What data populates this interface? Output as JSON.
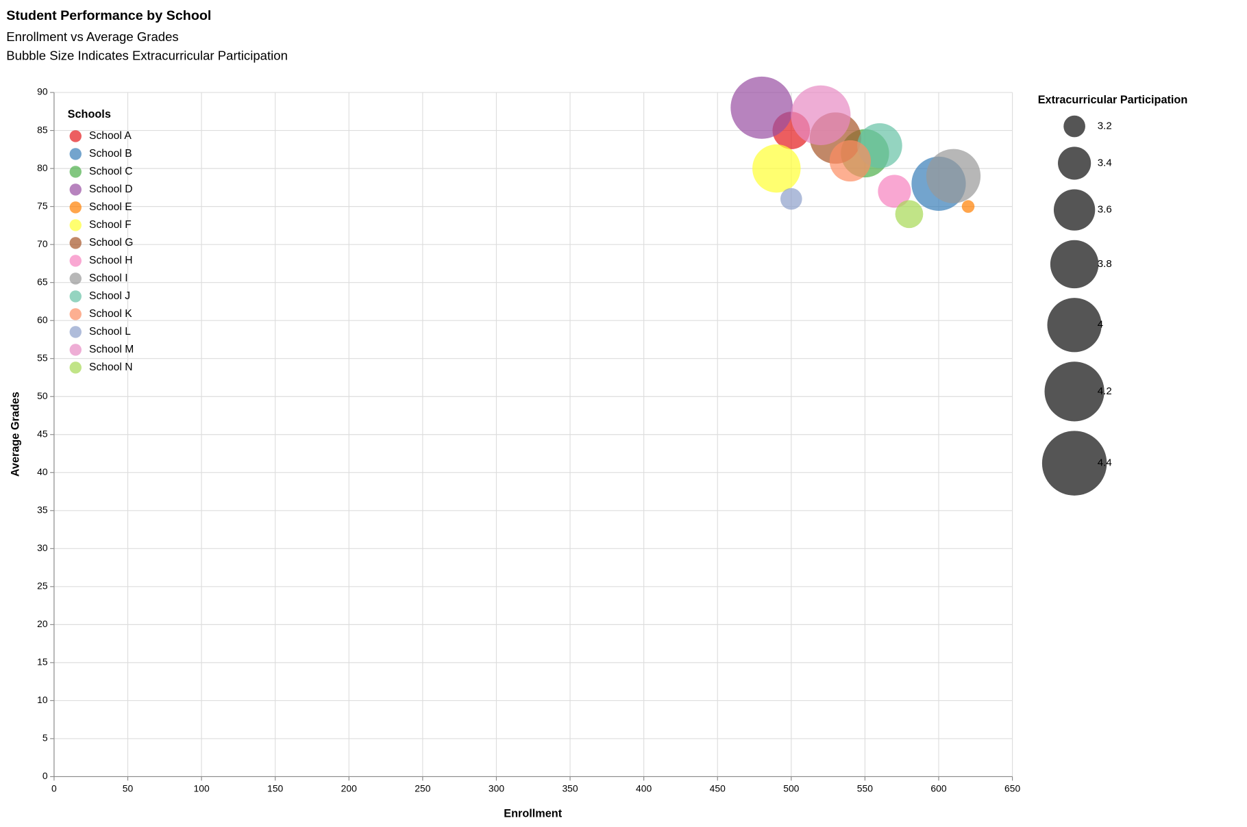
{
  "chart_data": {
    "type": "bubble",
    "title": "Student Performance by School",
    "subtitle": [
      "Enrollment vs Average Grades",
      "Bubble Size Indicates Extracurricular Participation"
    ],
    "x_label": "Enrollment",
    "y_label": "Average Grades",
    "legend_title": "Schools",
    "size_legend_title": "Extracurricular Participation",
    "legend_position": "top-left",
    "grid": true,
    "opacity": 0.7,
    "xlim": [
      0,
      650
    ],
    "xticks": [
      0,
      50,
      100,
      150,
      200,
      250,
      300,
      350,
      400,
      450,
      500,
      550,
      600,
      650
    ],
    "ylim": [
      0,
      90
    ],
    "yticks": [
      0,
      5,
      10,
      15,
      20,
      25,
      30,
      35,
      40,
      45,
      50,
      55,
      60,
      65,
      70,
      75,
      80,
      85,
      90
    ],
    "size_ticks": [
      3.2,
      3.4,
      3.6,
      3.8,
      4.0,
      4.2,
      4.4
    ],
    "size_legend_color": "#555555",
    "series": [
      {
        "name": "School A",
        "color": "#e41a1c",
        "x": [
          500
        ],
        "values": [
          85
        ],
        "sizes": [
          3.5
        ]
      },
      {
        "name": "School B",
        "color": "#377eb8",
        "x": [
          600
        ],
        "values": [
          78
        ],
        "sizes": [
          4.0
        ]
      },
      {
        "name": "School C",
        "color": "#4daf4a",
        "x": [
          550
        ],
        "values": [
          82
        ],
        "sizes": [
          3.8
        ]
      },
      {
        "name": "School D",
        "color": "#984ea3",
        "x": [
          480
        ],
        "values": [
          88
        ],
        "sizes": [
          4.3
        ]
      },
      {
        "name": "School E",
        "color": "#ff7f00",
        "x": [
          620
        ],
        "values": [
          75
        ],
        "sizes": [
          3.1
        ]
      },
      {
        "name": "School F",
        "color": "#ffff33",
        "x": [
          490
        ],
        "values": [
          80
        ],
        "sizes": [
          3.8
        ]
      },
      {
        "name": "School G",
        "color": "#a65628",
        "x": [
          530
        ],
        "values": [
          84
        ],
        "sizes": [
          3.9
        ]
      },
      {
        "name": "School H",
        "color": "#f781bf",
        "x": [
          570
        ],
        "values": [
          77
        ],
        "sizes": [
          3.4
        ]
      },
      {
        "name": "School I",
        "color": "#999999",
        "x": [
          610
        ],
        "values": [
          79
        ],
        "sizes": [
          4.0
        ]
      },
      {
        "name": "School J",
        "color": "#66c2a5",
        "x": [
          560
        ],
        "values": [
          83
        ],
        "sizes": [
          3.7
        ]
      },
      {
        "name": "School K",
        "color": "#fc8d62",
        "x": [
          540
        ],
        "values": [
          81
        ],
        "sizes": [
          3.6
        ]
      },
      {
        "name": "School L",
        "color": "#8da0cb",
        "x": [
          500
        ],
        "values": [
          76
        ],
        "sizes": [
          3.2
        ]
      },
      {
        "name": "School M",
        "color": "#e78ac3",
        "x": [
          520
        ],
        "values": [
          87
        ],
        "sizes": [
          4.2
        ]
      },
      {
        "name": "School N",
        "color": "#a6d854",
        "x": [
          580
        ],
        "values": [
          74
        ],
        "sizes": [
          3.3
        ]
      }
    ]
  }
}
